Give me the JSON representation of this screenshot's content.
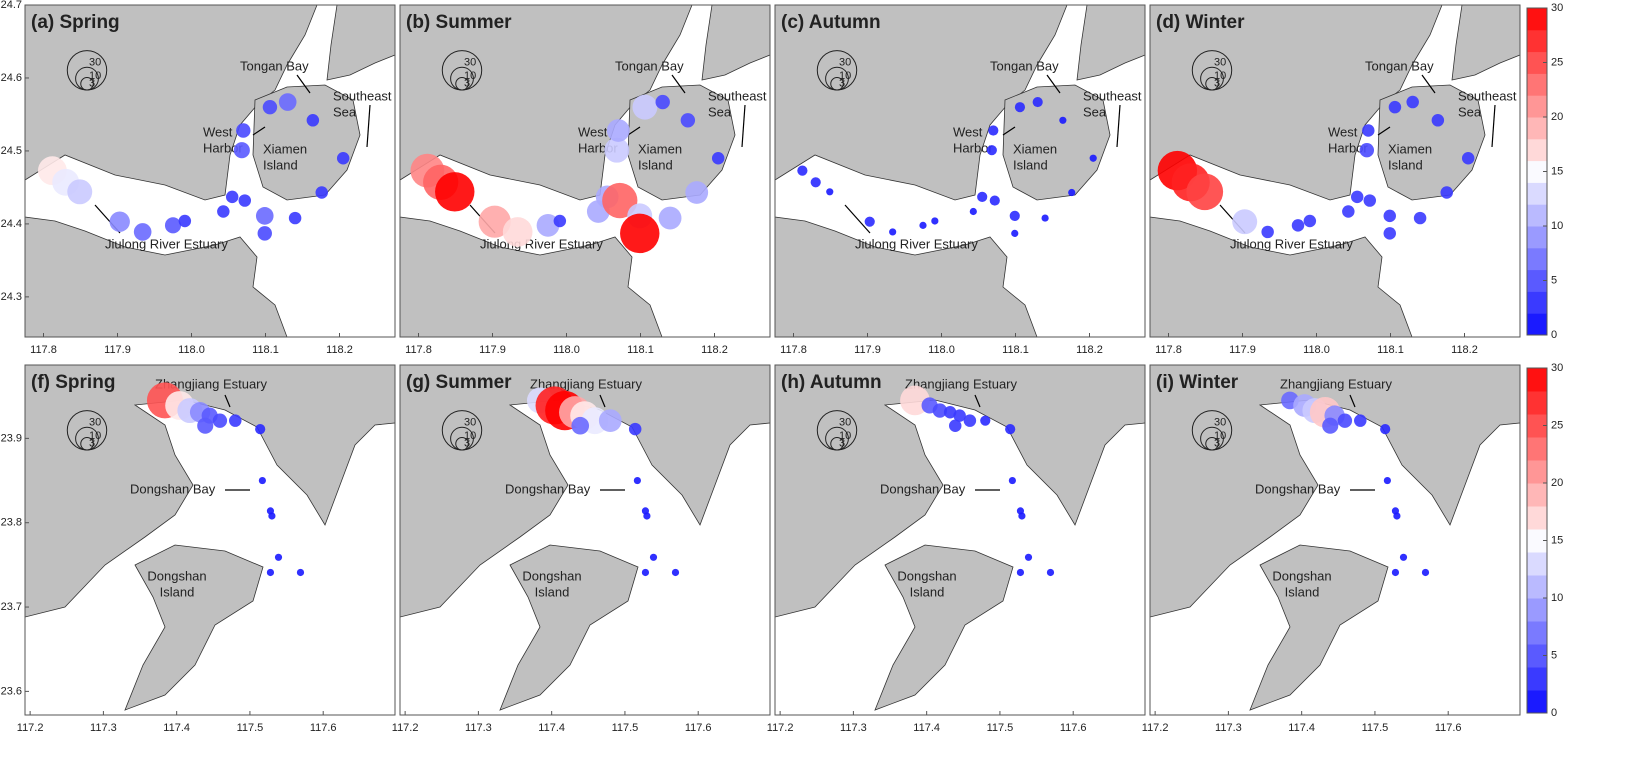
{
  "rows": [
    {
      "xlim": [
        117.775,
        118.275
      ],
      "ylim": [
        24.245,
        24.7
      ],
      "xticks": [
        117.8,
        117.9,
        {
          "value": 118,
          "label": "118.0"
        },
        118.1,
        118.2
      ],
      "yticks": [
        24.3,
        24.4,
        24.5,
        24.6,
        24.7
      ],
      "labels": {
        "tongan_bay": "Tongan Bay",
        "west_harbor": [
          "West",
          "Harbor"
        ],
        "xiamen_island": [
          "Xiamen",
          "Island"
        ],
        "southeast_sea": [
          "Southeast",
          "Sea"
        ],
        "jiulong_river_estuary": "Jiulong River Estuary"
      },
      "stations": {
        "lon": [
          117.812,
          117.83,
          117.849,
          117.903,
          117.934,
          117.975,
          117.991,
          118.043,
          118.055,
          118.072,
          118.068,
          118.07,
          118.106,
          118.13,
          118.164,
          118.099,
          118.099,
          118.14,
          118.176,
          118.205
        ],
        "lat": [
          24.473,
          24.457,
          24.444,
          24.403,
          24.389,
          24.398,
          24.404,
          24.417,
          24.437,
          24.432,
          24.501,
          24.528,
          24.56,
          24.567,
          24.542,
          24.411,
          24.387,
          24.408,
          24.443,
          24.49
        ]
      },
      "panels": [
        {
          "title": "(a) Spring",
          "values": [
            16,
            14,
            12,
            8,
            6,
            5,
            3,
            3,
            3,
            3,
            5,
            4,
            4,
            6,
            3,
            6,
            4,
            3,
            3,
            3
          ]
        },
        {
          "title": "(b) Summer",
          "values": [
            22,
            24,
            30,
            20,
            17,
            10,
            3,
            10,
            10,
            24,
            12,
            10,
            12,
            4,
            4,
            12,
            30,
            10,
            10,
            3
          ]
        },
        {
          "title": "(c) Autumn",
          "values": [
            2,
            2,
            1,
            2,
            1,
            1,
            1,
            1,
            2,
            2,
            2,
            2,
            2,
            2,
            1,
            2,
            1,
            1,
            1,
            1
          ]
        },
        {
          "title": "(d) Winter",
          "values": [
            30,
            28,
            26,
            12,
            3,
            3,
            3,
            3,
            3,
            3,
            4,
            3,
            3,
            3,
            3,
            3,
            3,
            3,
            3,
            3
          ]
        }
      ]
    },
    {
      "xlim": [
        117.193,
        117.698
      ],
      "ylim": [
        23.572,
        23.987
      ],
      "xticks": [
        117.2,
        117.3,
        117.4,
        117.5,
        117.6
      ],
      "yticks": [
        23.6,
        23.7,
        23.8,
        23.9
      ],
      "labels": {
        "zhangjiang_estuary": "Zhangjiang Estuary",
        "dongshan_bay": "Dongshan Bay",
        "dongshan_island": [
          "Dongshan",
          "Island"
        ]
      },
      "stations": {
        "lon": [
          117.384,
          117.404,
          117.418,
          117.432,
          117.445,
          117.459,
          117.48,
          117.439,
          117.514,
          117.517,
          117.528,
          117.53,
          117.528,
          117.569,
          117.539
        ],
        "lat": [
          23.945,
          23.939,
          23.933,
          23.931,
          23.927,
          23.921,
          23.921,
          23.915,
          23.911,
          23.85,
          23.814,
          23.808,
          23.741,
          23.741,
          23.759
        ]
      },
      "panels": [
        {
          "title": "(f) Spring",
          "values": [
            25,
            16,
            12,
            8,
            5,
            4,
            3,
            5,
            2,
            1,
            1,
            1,
            1,
            1,
            1
          ]
        },
        {
          "title": "(g) Summer",
          "values": [
            13,
            28,
            30,
            20,
            16,
            14,
            10,
            6,
            3,
            1,
            1,
            1,
            1,
            1,
            1
          ]
        },
        {
          "title": "(h) Autumn",
          "values": [
            17,
            5,
            4,
            3,
            3,
            3,
            2,
            3,
            2,
            1,
            1,
            1,
            1,
            1,
            1
          ]
        },
        {
          "title": "(i) Winter",
          "values": [
            6,
            10,
            12,
            18,
            8,
            4,
            3,
            5,
            2,
            1,
            1,
            1,
            1,
            1,
            1
          ]
        }
      ]
    }
  ],
  "size_legend": [
    3,
    10,
    30
  ],
  "colorbar": {
    "lim": [
      0,
      30
    ],
    "ticks": [
      0,
      5,
      10,
      15,
      20,
      25,
      30
    ]
  }
}
